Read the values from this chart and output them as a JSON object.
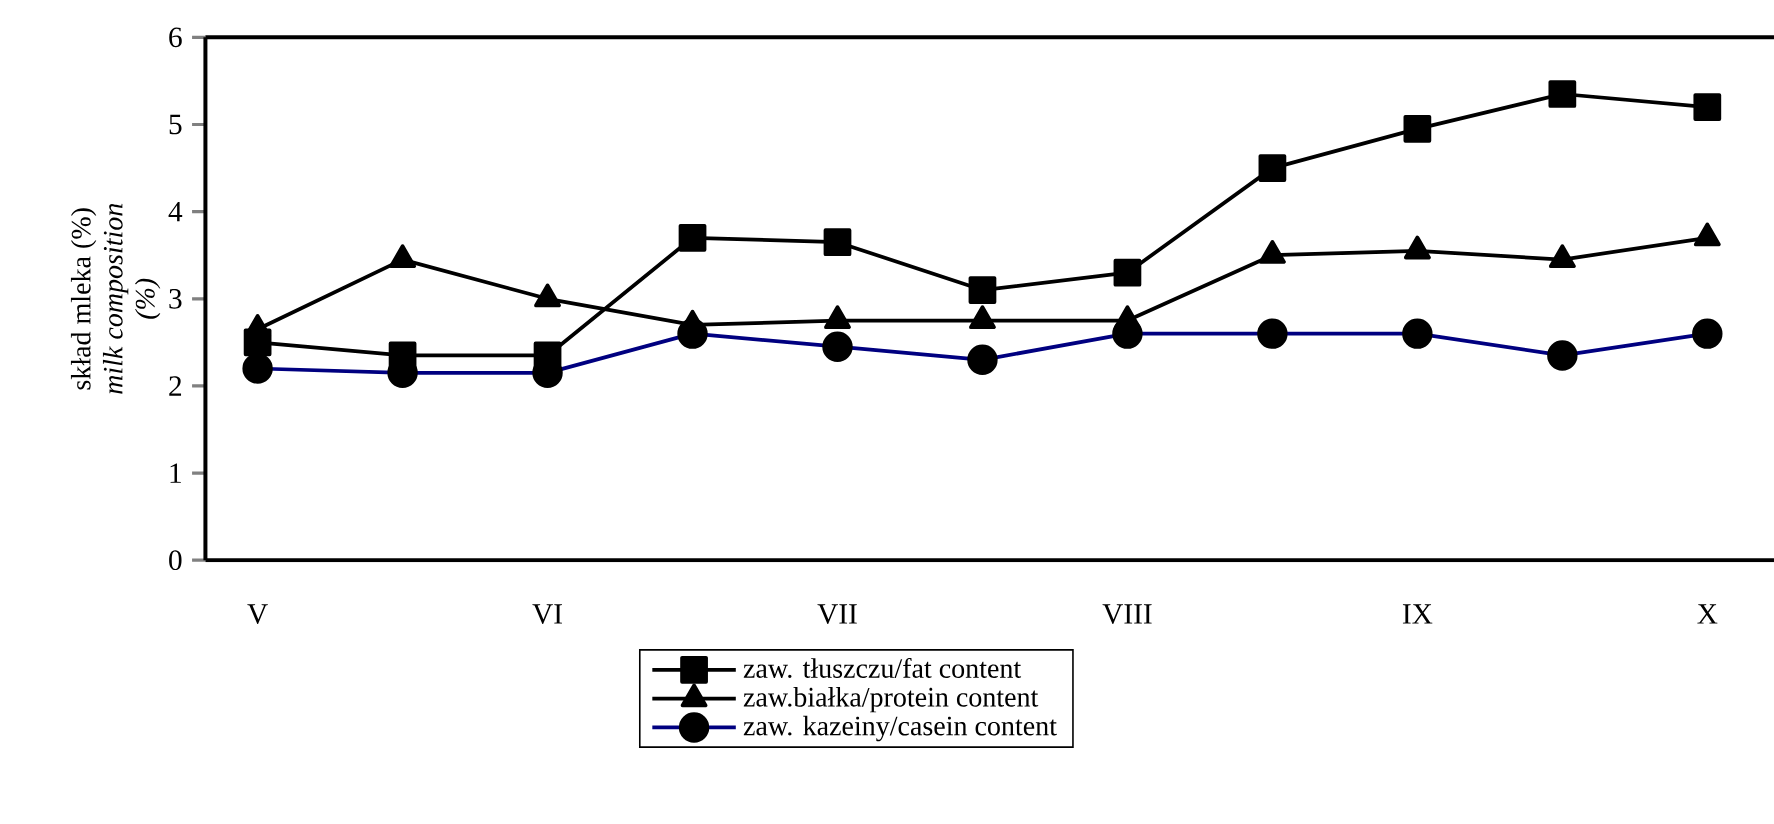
{
  "chart_data": {
    "type": "line",
    "ylabel": "skład mleka (%) *milk composition (%)*",
    "categories": [
      "V",
      null,
      "VI",
      null,
      "VII",
      null,
      "VIII",
      null,
      "IX",
      null,
      "X"
    ],
    "series": [
      {
        "name": "zaw. tłuszczu/fat content",
        "color": "#000000",
        "marker": "square",
        "values": [
          2.5,
          2.35,
          2.35,
          3.7,
          3.65,
          3.1,
          3.3,
          4.5,
          4.95,
          5.35,
          5.2
        ]
      },
      {
        "name": "zaw.białka/protein content",
        "color": "#000000",
        "marker": "triangle",
        "values": [
          2.65,
          3.45,
          3.0,
          2.7,
          2.75,
          2.75,
          2.75,
          3.5,
          3.55,
          3.45,
          3.7
        ]
      },
      {
        "name": "zaw. kazeiny/casein content",
        "color": "#000080",
        "marker": "circle",
        "values": [
          2.2,
          2.15,
          2.15,
          2.6,
          2.45,
          2.3,
          2.6,
          2.6,
          2.6,
          2.35,
          2.6
        ]
      }
    ],
    "ylim": [
      0,
      6
    ],
    "yticks": [
      0,
      1,
      2,
      3,
      4,
      5,
      6
    ],
    "legend": "bottom",
    "line_style": "solid"
  }
}
